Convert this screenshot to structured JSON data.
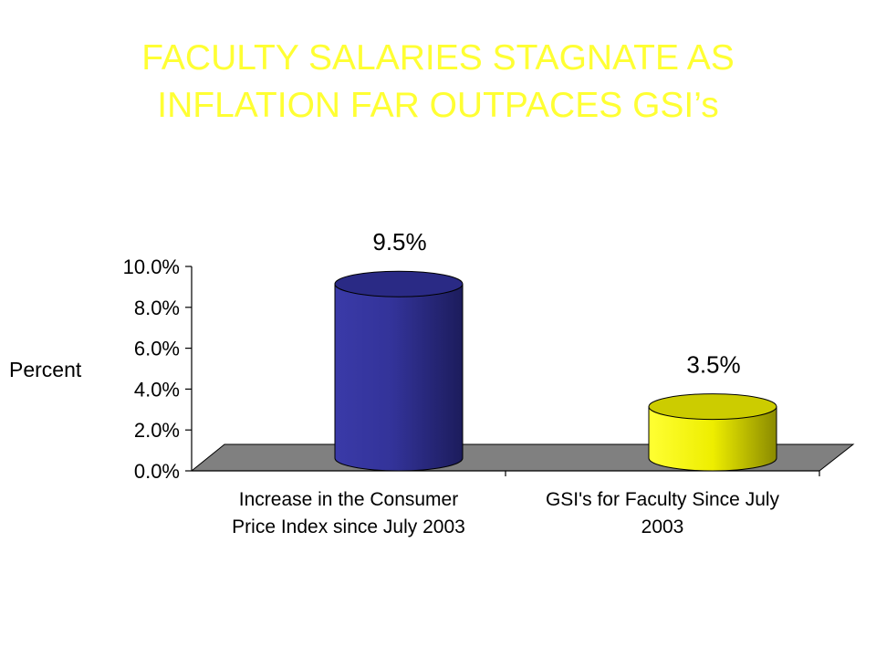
{
  "slide": {
    "title_line1": "FACULTY SALARIES STAGNATE AS",
    "title_line2": "INFLATION FAR OUTPACES  GSI’s",
    "title_color": "#ffff33"
  },
  "chart_data": {
    "type": "bar",
    "style": "3d-cylinder",
    "ylabel": "Percent",
    "xlabel": "",
    "ylim": [
      0,
      10
    ],
    "y_ticks": [
      "0.0%",
      "2.0%",
      "4.0%",
      "6.0%",
      "8.0%",
      "10.0%"
    ],
    "categories": [
      [
        "Increase in the Consumer",
        "Price Index since July 2003"
      ],
      [
        "GSI's for Faculty Since July",
        "2003"
      ]
    ],
    "values": [
      9.5,
      3.5
    ],
    "data_labels": [
      "9.5%",
      "3.5%"
    ],
    "bar_colors": [
      "#333399",
      "#ffff00"
    ],
    "floor_color": "#808080",
    "grid": false,
    "legend": "none"
  }
}
